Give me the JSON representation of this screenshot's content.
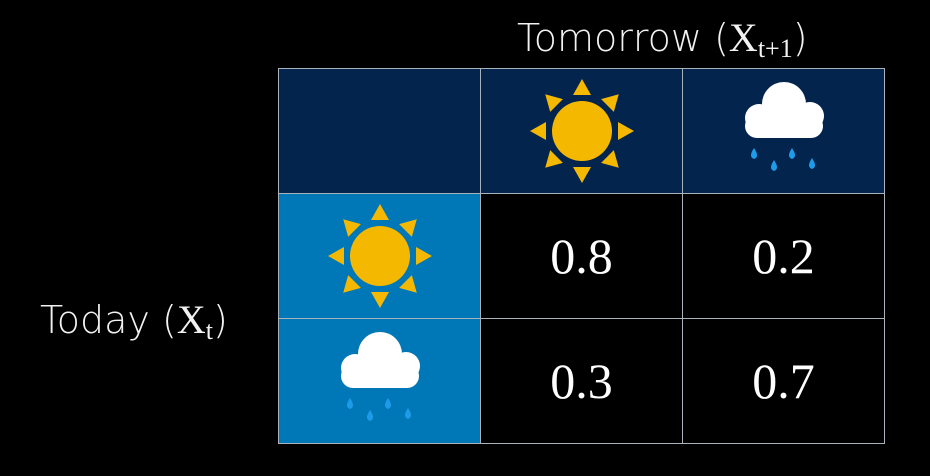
{
  "column_axis": {
    "label": "Tomorrow (",
    "variable": "X",
    "subscript": "t+1",
    "close": ")"
  },
  "row_axis": {
    "label": "Today (",
    "variable": "X",
    "subscript": "t",
    "close": ")"
  },
  "states": [
    {
      "icon": "sun-icon"
    },
    {
      "icon": "rain-cloud-icon"
    }
  ],
  "matrix": [
    [
      "0.8",
      "0.2"
    ],
    [
      "0.3",
      "0.7"
    ]
  ],
  "colors": {
    "header_bg": "#03244d",
    "row_header_bg": "#0077b6",
    "sun": "#f5b800",
    "drops": "#1e9be8",
    "cloud": "#ffffff",
    "grid": "#a9b1bb"
  }
}
